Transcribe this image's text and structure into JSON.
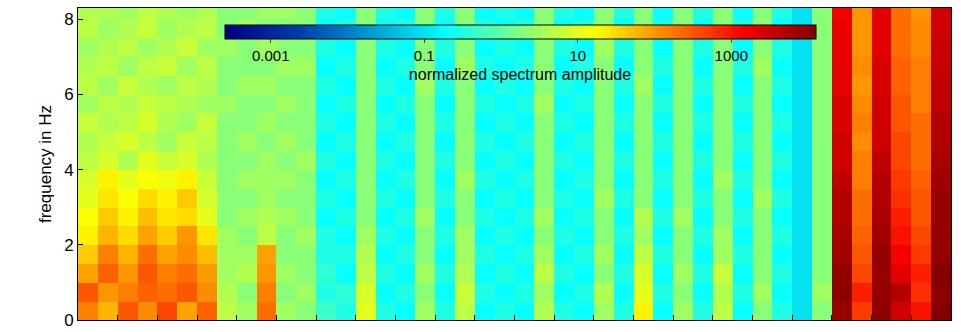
{
  "chart_data": {
    "type": "heatmap",
    "y_label": "frequency in Hz",
    "log": true,
    "color": "jet",
    "tick_labels": "y",
    "ylim": [
      0,
      8.3
    ],
    "yticks": [
      0,
      2,
      4,
      6,
      8
    ],
    "y": [
      0.25,
      0.75,
      1.25,
      1.75,
      2.25,
      2.75,
      3.25,
      3.75,
      4.25,
      4.75,
      5.25,
      5.75,
      6.25,
      6.75,
      7.25,
      7.75,
      8.25
    ],
    "cells": [
      [
        150,
        60,
        300,
        120,
        400,
        80,
        250,
        5,
        3,
        200,
        3,
        2,
        0.5,
        0.3,
        10,
        0.3,
        0.2,
        3,
        0.3,
        5,
        0.2,
        0.3,
        0.2,
        4,
        0.3,
        0.2,
        3,
        0.3,
        20,
        0.2,
        3,
        0.3,
        5,
        0.2,
        2,
        0.3,
        0.1,
        2,
        8000,
        500,
        10000,
        3000,
        1000,
        12000
      ],
      [
        300,
        100,
        150,
        250,
        200,
        300,
        120,
        4,
        2,
        150,
        2,
        3,
        0.3,
        0.4,
        8,
        0.2,
        0.3,
        2,
        0.2,
        6,
        0.3,
        0.2,
        0.3,
        3,
        0.2,
        0.3,
        4,
        0.2,
        10,
        0.3,
        2,
        0.2,
        4,
        0.3,
        3,
        0.2,
        0.1,
        3,
        10000,
        800,
        9000,
        5000,
        600,
        10000
      ],
      [
        80,
        250,
        100,
        300,
        150,
        200,
        90,
        3,
        4,
        100,
        3,
        2,
        0.4,
        0.2,
        5,
        0.3,
        0.2,
        3,
        0.3,
        4,
        0.2,
        0.3,
        0.2,
        5,
        0.3,
        0.2,
        2,
        0.3,
        8,
        0.2,
        3,
        0.3,
        6,
        0.2,
        2,
        0.3,
        0.1,
        2,
        9000,
        400,
        8000,
        2000,
        800,
        11000
      ],
      [
        40,
        150,
        60,
        200,
        80,
        120,
        50,
        3,
        3,
        80,
        2,
        2,
        0.3,
        0.3,
        4,
        0.2,
        0.3,
        2,
        0.2,
        3,
        0.3,
        0.2,
        0.3,
        3,
        0.2,
        0.3,
        3,
        0.2,
        5,
        0.3,
        2,
        0.2,
        3,
        0.3,
        2,
        0.2,
        0.1,
        2,
        7000,
        300,
        9000,
        1500,
        500,
        9000
      ],
      [
        20,
        60,
        30,
        80,
        40,
        100,
        25,
        3,
        2,
        5,
        2,
        3,
        0.3,
        0.2,
        3,
        0.3,
        0.2,
        2,
        0.3,
        3,
        0.2,
        0.3,
        0.2,
        2,
        0.3,
        0.2,
        2,
        0.3,
        3,
        0.2,
        2,
        0.3,
        3,
        0.2,
        2,
        0.3,
        0.1,
        2,
        6000,
        250,
        7000,
        1000,
        400,
        9000
      ],
      [
        15,
        40,
        20,
        50,
        25,
        30,
        10,
        2,
        3,
        4,
        3,
        2,
        0.2,
        0.3,
        2,
        0.2,
        0.3,
        3,
        0.2,
        2,
        0.3,
        0.2,
        0.3,
        3,
        0.2,
        0.3,
        2,
        0.2,
        4,
        0.3,
        3,
        0.2,
        2,
        0.3,
        2,
        0.2,
        0.1,
        2,
        5000,
        200,
        6000,
        800,
        300,
        8000
      ],
      [
        10,
        25,
        15,
        30,
        20,
        40,
        8,
        2,
        2,
        3,
        2,
        2,
        0.3,
        0.2,
        2,
        0.3,
        0.2,
        2,
        0.3,
        2,
        0.2,
        0.3,
        0.2,
        2,
        0.3,
        0.2,
        3,
        0.3,
        2,
        0.2,
        2,
        0.3,
        2,
        0.2,
        3,
        0.3,
        0.1,
        2,
        5000,
        200,
        5000,
        600,
        300,
        8000
      ],
      [
        8,
        20,
        10,
        15,
        12,
        20,
        6,
        2,
        3,
        3,
        3,
        2,
        0.2,
        0.3,
        2,
        0.2,
        0.3,
        2,
        0.2,
        3,
        0.3,
        0.2,
        0.3,
        2,
        0.2,
        0.3,
        2,
        0.2,
        2,
        0.3,
        2,
        0.2,
        3,
        0.3,
        2,
        0.2,
        0.1,
        2,
        4000,
        150,
        5000,
        500,
        250,
        7000
      ],
      [
        5,
        8,
        4,
        10,
        6,
        8,
        4,
        2,
        2,
        3,
        2,
        3,
        0.3,
        0.2,
        2,
        0.3,
        0.2,
        2,
        0.3,
        2,
        0.2,
        0.3,
        0.2,
        2,
        0.3,
        0.2,
        2,
        0.3,
        2,
        0.2,
        2,
        0.3,
        2,
        0.2,
        2,
        0.3,
        0.1,
        2,
        3000,
        150,
        4000,
        400,
        200,
        6000
      ],
      [
        4,
        6,
        8,
        5,
        3,
        6,
        5,
        2,
        3,
        2,
        3,
        2,
        0.2,
        0.3,
        2,
        0.2,
        0.3,
        2,
        0.2,
        2,
        0.3,
        0.2,
        0.3,
        2,
        0.2,
        0.3,
        2,
        0.2,
        2,
        0.3,
        2,
        0.2,
        2,
        0.3,
        2,
        0.2,
        0.1,
        2,
        3000,
        120,
        3000,
        400,
        200,
        5000
      ],
      [
        6,
        4,
        5,
        8,
        4,
        3,
        6,
        2,
        2,
        3,
        2,
        2,
        0.3,
        0.2,
        2,
        0.3,
        0.2,
        2,
        0.3,
        2,
        0.2,
        0.3,
        0.2,
        2,
        0.3,
        0.2,
        2,
        0.3,
        2,
        0.2,
        2,
        0.3,
        2,
        0.2,
        2,
        0.3,
        0.1,
        2,
        2500,
        150,
        3000,
        300,
        200,
        5000
      ],
      [
        3,
        5,
        4,
        6,
        5,
        4,
        3,
        3,
        2,
        2,
        3,
        2,
        0.2,
        0.3,
        2,
        0.2,
        0.3,
        2,
        0.2,
        2,
        0.3,
        0.2,
        0.3,
        3,
        0.2,
        0.3,
        2,
        0.2,
        2,
        0.3,
        2,
        0.2,
        2,
        0.3,
        2,
        0.2,
        0.1,
        2,
        2500,
        120,
        3000,
        300,
        150,
        4000
      ],
      [
        5,
        3,
        6,
        4,
        3,
        5,
        4,
        2,
        3,
        3,
        2,
        2,
        0.3,
        0.2,
        2,
        0.3,
        0.2,
        3,
        0.3,
        2,
        0.2,
        0.3,
        0.2,
        2,
        0.3,
        0.2,
        2,
        0.3,
        3,
        0.2,
        2,
        0.3,
        2,
        0.2,
        2,
        0.3,
        0.1,
        2,
        2000,
        100,
        2500,
        250,
        150,
        4000
      ],
      [
        4,
        5,
        3,
        5,
        6,
        3,
        5,
        2,
        2,
        2,
        3,
        3,
        0.2,
        0.3,
        2,
        0.2,
        0.3,
        2,
        0.2,
        3,
        0.3,
        0.2,
        0.3,
        2,
        0.2,
        0.3,
        2,
        0.2,
        2,
        0.3,
        2,
        0.2,
        2,
        0.3,
        3,
        0.2,
        0.1,
        2,
        2000,
        120,
        2500,
        250,
        150,
        3500
      ],
      [
        3,
        4,
        5,
        3,
        4,
        6,
        3,
        3,
        2,
        3,
        2,
        2,
        0.3,
        0.2,
        2,
        0.3,
        0.2,
        2,
        0.3,
        2,
        0.2,
        0.3,
        0.2,
        2,
        0.3,
        0.2,
        3,
        0.3,
        2,
        0.2,
        2,
        0.3,
        2,
        0.2,
        2,
        0.3,
        0.1,
        2,
        1800,
        100,
        2000,
        200,
        120,
        3500
      ],
      [
        5,
        3,
        4,
        6,
        3,
        4,
        5,
        2,
        3,
        2,
        2,
        2,
        0.2,
        0.3,
        2,
        0.2,
        0.3,
        2,
        0.2,
        2,
        0.3,
        0.2,
        0.3,
        2,
        0.2,
        0.3,
        2,
        0.2,
        2,
        0.3,
        2,
        0.2,
        2,
        0.3,
        2,
        0.2,
        0.1,
        2,
        1800,
        100,
        2000,
        200,
        120,
        3000
      ],
      [
        4,
        4,
        3,
        5,
        4,
        3,
        4,
        2,
        2,
        3,
        3,
        2,
        0.3,
        0.2,
        2,
        0.3,
        0.2,
        2,
        0.3,
        2,
        0.2,
        0.3,
        0.2,
        2,
        0.3,
        0.2,
        2,
        0.3,
        2,
        0.2,
        2,
        0.3,
        2,
        0.2,
        2,
        0.3,
        0.1,
        2,
        1500,
        100,
        2000,
        200,
        100,
        3000
      ]
    ],
    "colorbar": {
      "title": "normalized spectrum amplitude",
      "range": [
        0.00025,
        12500
      ],
      "ticks": [
        0.001,
        0.1,
        10,
        1000
      ]
    }
  }
}
